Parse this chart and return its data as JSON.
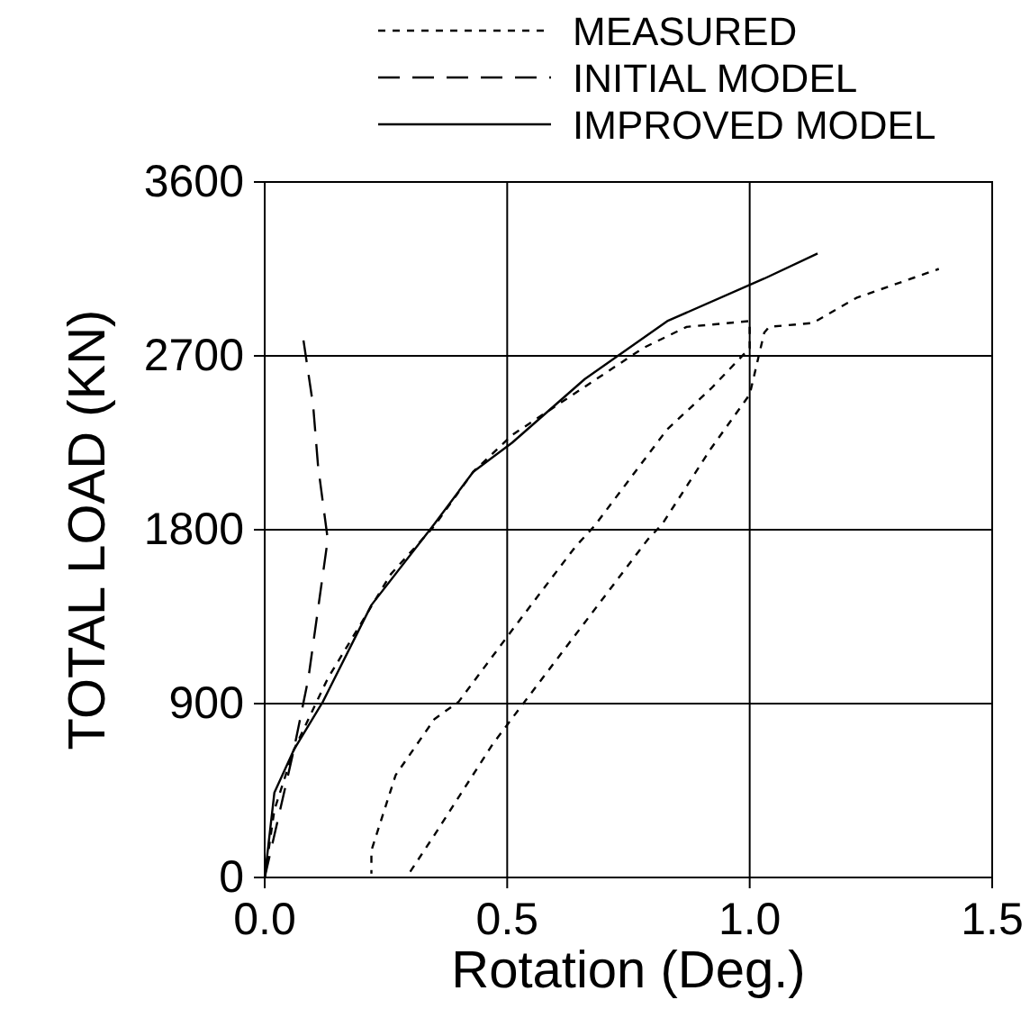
{
  "chart_data": {
    "type": "line",
    "xlabel": "Rotation (Deg.)",
    "ylabel": "TOTAL LOAD (KN)",
    "xlim": [
      0,
      1.5
    ],
    "xticks": [
      {
        "value": 0,
        "label": "0.0"
      },
      0.5,
      {
        "value": 1,
        "label": "1.0"
      },
      1.5
    ],
    "ylim": [
      0,
      3600
    ],
    "yticks": [
      0,
      900,
      1800,
      2700,
      3600
    ],
    "grid": true,
    "legend": "top",
    "marker": "none",
    "series": [
      {
        "name": "MEASURED",
        "color": "#000000",
        "line_style": "dotted",
        "x": [
          0,
          0.02,
          0.06,
          0.13,
          0.26,
          0.35,
          0.43,
          0.51,
          0.63,
          0.78,
          0.87,
          1.0,
          1.0,
          0.92,
          0.83,
          0.68,
          0.64,
          0.51,
          0.4,
          0.35,
          0.27,
          0.22,
          0.22,
          null,
          0.3,
          0.35,
          0.47,
          0.53,
          0.66,
          0.79,
          0.82,
          0.92,
          1.0,
          1.03,
          1.04,
          1.13,
          1.22,
          1.39
        ],
        "values": [
          0,
          350,
          660,
          1030,
          1570,
          1820,
          2100,
          2290,
          2490,
          2740,
          2850,
          2880,
          2740,
          2530,
          2320,
          1820,
          1710,
          1280,
          910,
          820,
          530,
          140,
          20,
          null,
          30,
          220,
          690,
          890,
          1320,
          1750,
          1830,
          2220,
          2500,
          2820,
          2850,
          2870,
          3000,
          3150
        ]
      },
      {
        "name": "INITIAL MODEL",
        "color": "#000000",
        "line_style": "dashed",
        "x": [
          0,
          0.06,
          0.09,
          0.13,
          0.11,
          0.1,
          0.08
        ],
        "values": [
          0,
          660,
          1030,
          1750,
          2130,
          2440,
          2780
        ]
      },
      {
        "name": "IMPROVED MODEL",
        "color": "#000000",
        "line_style": "solid",
        "x": [
          0,
          0.02,
          0.06,
          0.12,
          0.22,
          0.35,
          0.43,
          0.51,
          0.66,
          0.83,
          1.03,
          1.14
        ],
        "values": [
          0,
          440,
          660,
          910,
          1410,
          1830,
          2100,
          2250,
          2580,
          2880,
          3100,
          3230
        ]
      }
    ]
  }
}
